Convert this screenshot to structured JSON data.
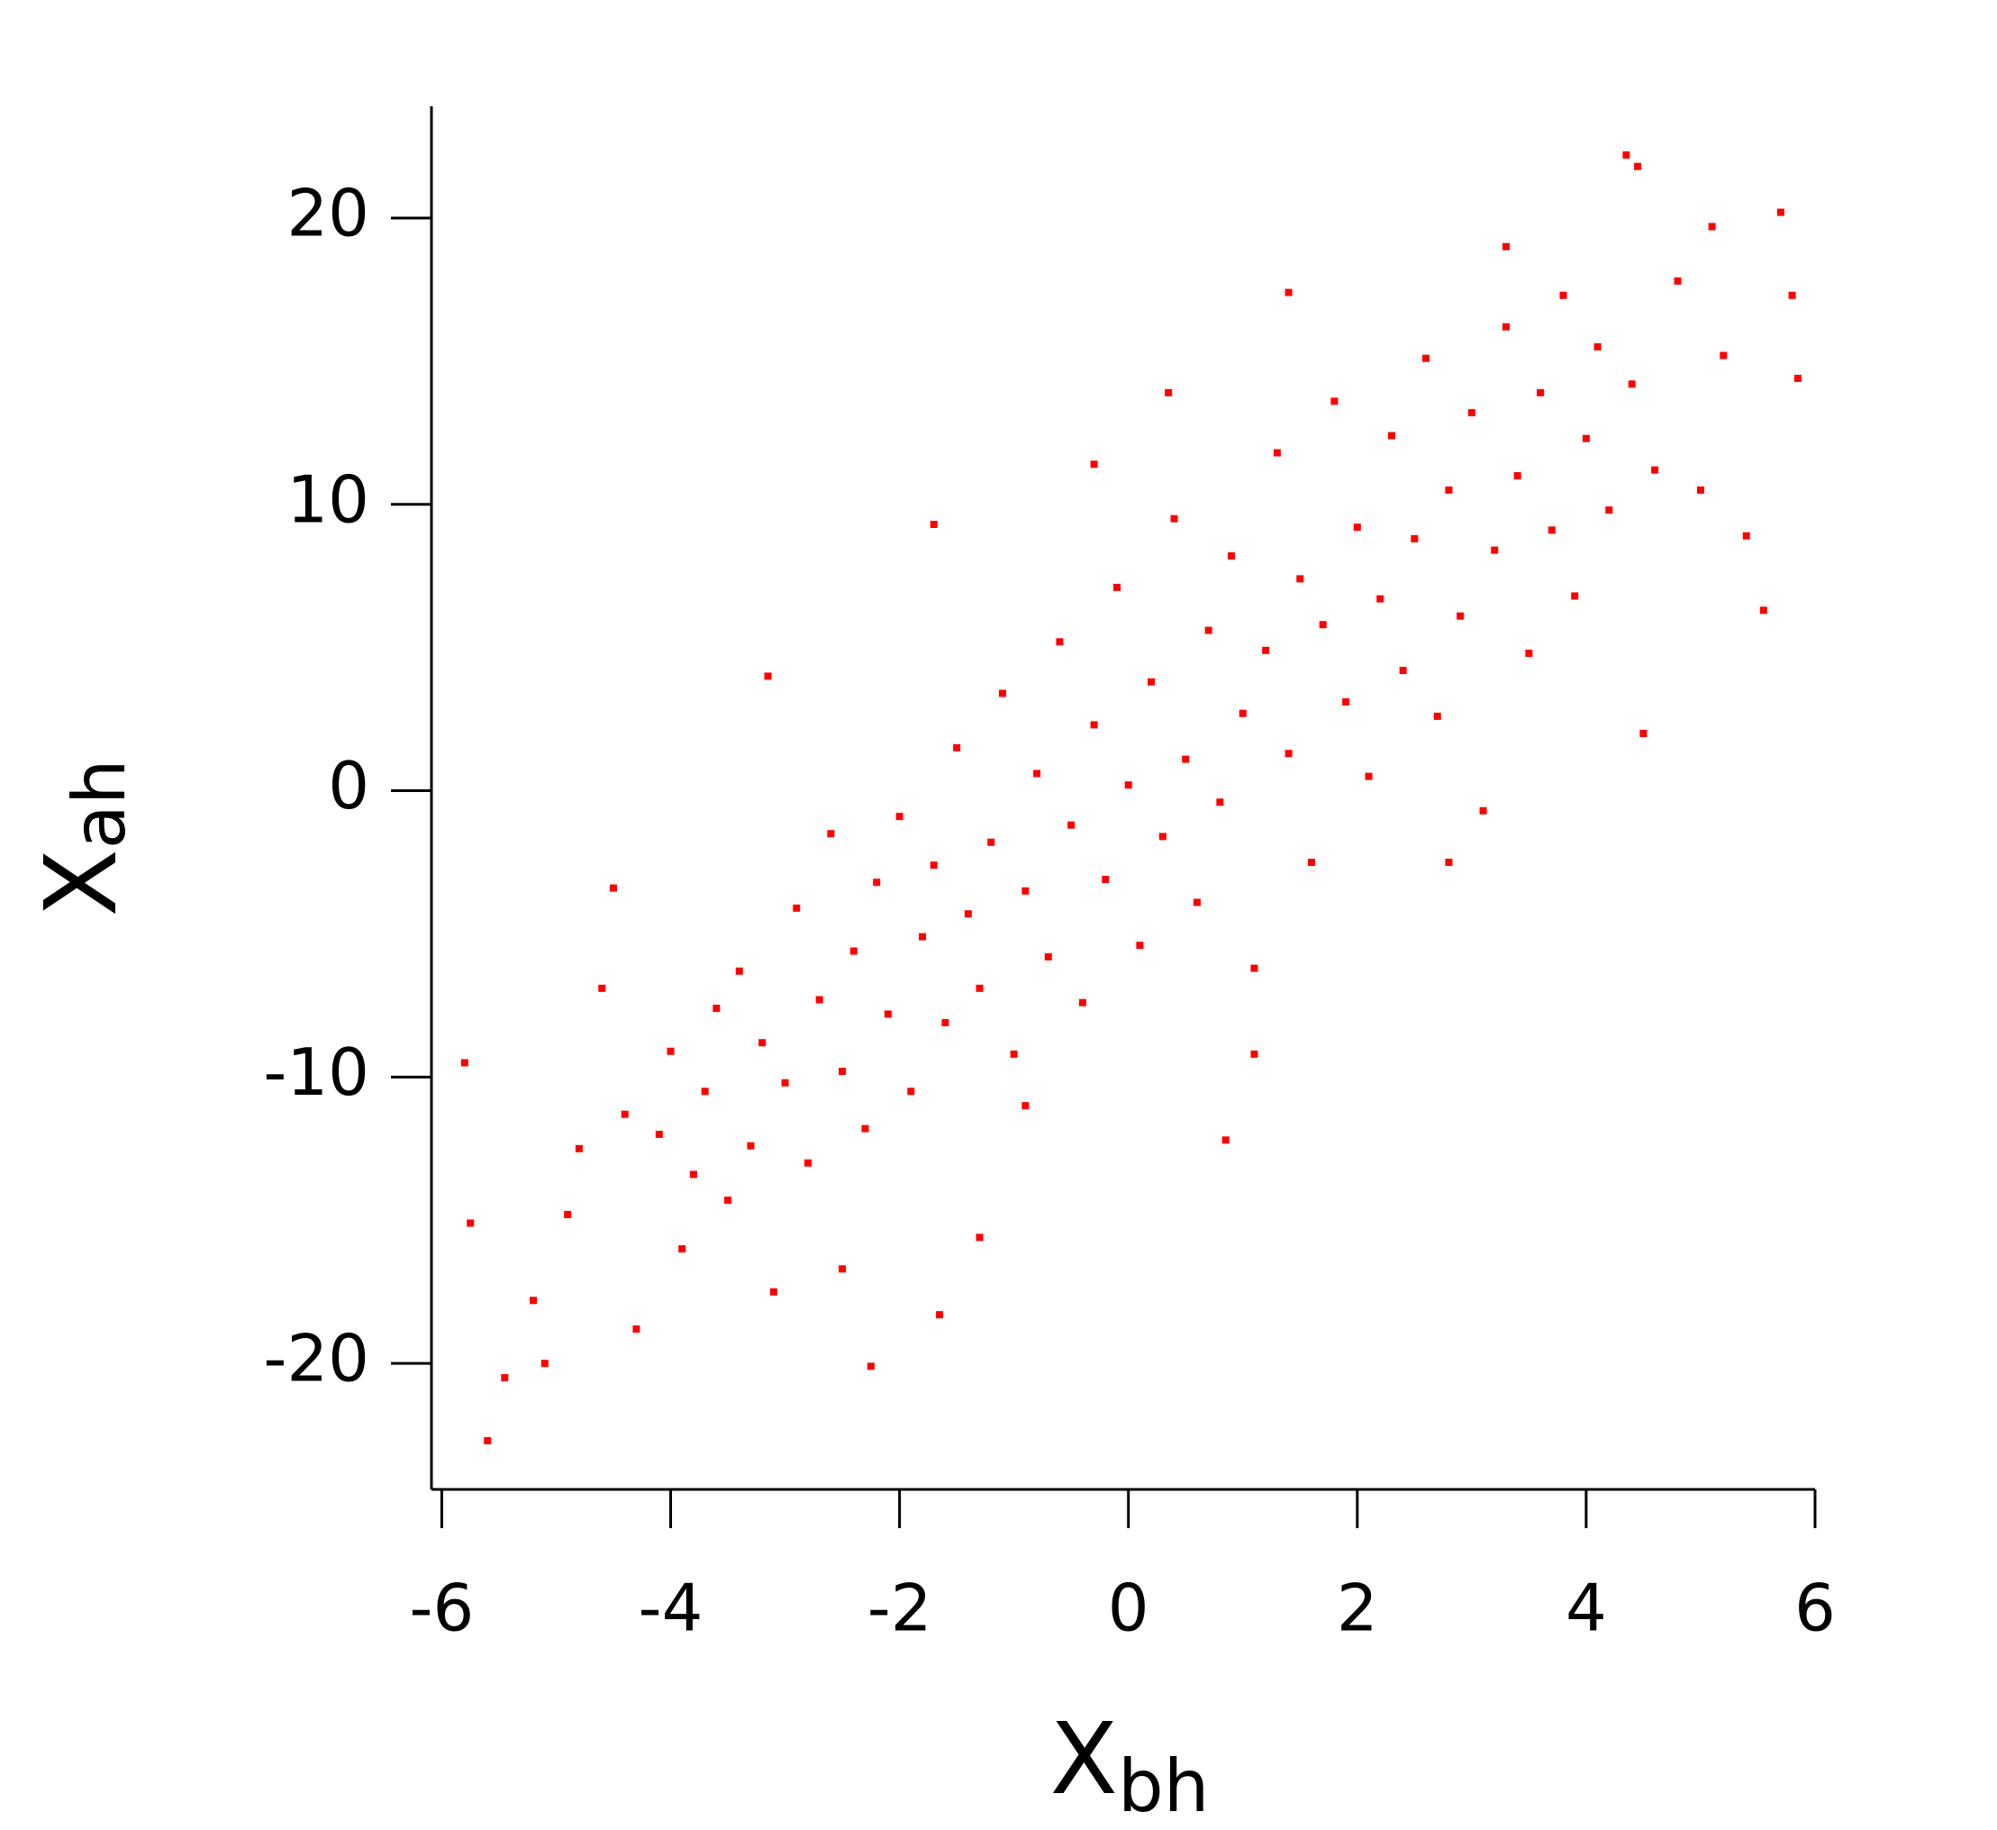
{
  "chart_data": {
    "type": "scatter",
    "xlabel": "X",
    "xlabel_subscript": "bh",
    "ylabel": "X",
    "ylabel_subscript": "ah",
    "color": "#ff0000",
    "xlim": [
      -6.09,
      6
    ],
    "xticks": [
      -6,
      -4,
      -2,
      0,
      2,
      4,
      6
    ],
    "ylim": [
      -24.4,
      23.9
    ],
    "yticks": [
      -20,
      -10,
      0,
      10,
      20
    ],
    "grid": false,
    "x": [
      4.35,
      4.45,
      5.7,
      5.8,
      5.85,
      -5.6,
      -5.45,
      -5.75,
      -5.8,
      -3.15,
      -1.7,
      4.5,
      5.55,
      0.85,
      -1.65,
      -2.25,
      3.3,
      1.4,
      -0.3,
      -5.2,
      -5.1,
      -4.9,
      -4.8,
      -4.6,
      -4.5,
      -4.4,
      -4.3,
      -4.1,
      -4,
      -3.9,
      -3.8,
      -3.7,
      -3.6,
      -3.5,
      -3.4,
      -3.3,
      -3.2,
      -3.1,
      -3,
      -2.9,
      -2.8,
      -2.7,
      -2.6,
      -2.5,
      -2.4,
      -2.3,
      -2.2,
      -2.1,
      -2,
      -1.9,
      -1.8,
      -1.7,
      -1.6,
      -1.5,
      -1.4,
      -1.3,
      -1.2,
      -1.1,
      -1,
      -0.9,
      -0.8,
      -0.7,
      -0.6,
      -0.5,
      -0.4,
      -0.3,
      -0.2,
      -0.1,
      0,
      0.1,
      0.2,
      0.3,
      0.4,
      0.5,
      0.6,
      0.7,
      0.8,
      0.9,
      1,
      1.1,
      1.2,
      1.3,
      1.4,
      1.5,
      1.6,
      1.7,
      1.8,
      1.9,
      2,
      2.1,
      2.2,
      2.3,
      2.4,
      2.5,
      2.6,
      2.7,
      2.8,
      2.9,
      3,
      3.1,
      3.2,
      3.3,
      3.4,
      3.5,
      3.6,
      3.7,
      3.8,
      3.9,
      4,
      4.1,
      4.2,
      4.4,
      4.6,
      4.8,
      5,
      5.2,
      5.4,
      5.1,
      0.35,
      -0.9,
      1.1,
      2.8,
      -2.5,
      -1.3
    ],
    "y": [
      22.2,
      21.8,
      20.2,
      17.3,
      14.4,
      -22.7,
      -20.5,
      -15.1,
      -9.5,
      4,
      9.3,
      2,
      6.3,
      -12.2,
      -18.3,
      -20.1,
      19,
      17.4,
      11.4,
      -17.8,
      -20,
      -14.8,
      -12.5,
      -6.9,
      -3.4,
      -11.3,
      -18.8,
      -12,
      -9.1,
      -16,
      -13.4,
      -10.5,
      -7.6,
      -14.3,
      -6.3,
      -12.4,
      -8.8,
      -17.5,
      -10.2,
      -4.1,
      -13,
      -7.3,
      -1.5,
      -9.8,
      -5.6,
      -11.8,
      -3.2,
      -7.8,
      -0.9,
      -10.5,
      -5.1,
      -2.6,
      -8.1,
      1.5,
      -4.3,
      -6.9,
      -1.8,
      3.4,
      -9.2,
      -3.5,
      0.6,
      -5.8,
      5.2,
      -1.2,
      -7.4,
      2.3,
      -3.1,
      7.1,
      0.2,
      -5.4,
      3.8,
      -1.6,
      9.5,
      1.1,
      -3.9,
      5.6,
      -0.4,
      8.2,
      2.7,
      -6.2,
      4.9,
      11.8,
      1.3,
      7.4,
      -2.5,
      5.8,
      13.6,
      3.1,
      9.2,
      0.5,
      6.7,
      12.4,
      4.2,
      8.8,
      15.1,
      2.6,
      10.5,
      6.1,
      13.2,
      -0.7,
      8.4,
      16.2,
      11,
      4.8,
      13.9,
      9.1,
      17.3,
      6.8,
      12.3,
      15.5,
      9.8,
      14.2,
      11.2,
      17.8,
      10.5,
      15.2,
      8.9,
      19.7,
      13.9,
      -11,
      -9.2,
      -2.5,
      -16.7,
      -15.6
    ]
  }
}
